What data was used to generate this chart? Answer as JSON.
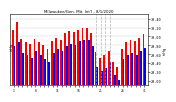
{
  "title": "Milwaukee/Gen. Mit. Int'l - 8/1/2020",
  "left_label": "inHg",
  "background_color": "#ffffff",
  "high_color": "#ff0000",
  "low_color": "#0000ff",
  "dashed_indices": [
    19,
    20,
    21,
    22
  ],
  "highs": [
    30.15,
    30.32,
    29.95,
    29.88,
    29.82,
    29.95,
    29.88,
    29.8,
    29.72,
    29.9,
    29.97,
    29.93,
    30.08,
    30.13,
    30.1,
    30.15,
    30.18,
    30.2,
    30.08,
    29.65,
    29.52,
    29.58,
    29.68,
    29.42,
    29.32,
    29.72,
    29.88,
    29.92,
    29.9,
    29.97,
    30.05
  ],
  "lows": [
    29.78,
    29.88,
    29.62,
    29.58,
    29.52,
    29.68,
    29.58,
    29.48,
    29.42,
    29.62,
    29.72,
    29.68,
    29.78,
    29.82,
    29.8,
    29.9,
    29.92,
    29.92,
    29.78,
    29.32,
    29.22,
    29.28,
    29.42,
    29.12,
    29.02,
    29.48,
    29.58,
    29.62,
    29.58,
    29.68,
    29.74
  ],
  "ylim_min": 28.9,
  "ylim_max": 30.5,
  "ytick_step": 0.2,
  "yticks": [
    29.0,
    29.2,
    29.4,
    29.6,
    29.8,
    30.0,
    30.2,
    30.4
  ],
  "ytick_labels": [
    "29.00",
    "29.20",
    "29.40",
    "29.60",
    "29.80",
    "30.00",
    "30.20",
    "30.40"
  ]
}
